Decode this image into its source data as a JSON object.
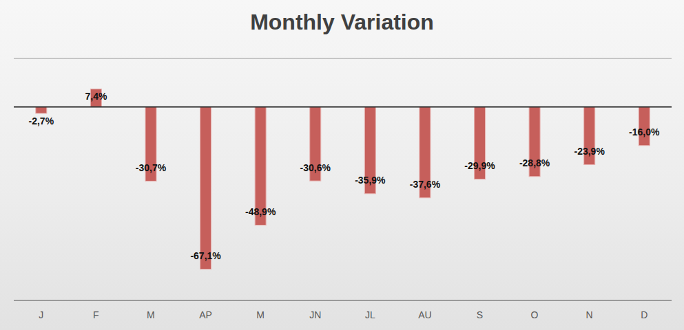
{
  "chart_data": {
    "type": "bar",
    "title": "Monthly Variation",
    "categories": [
      "J",
      "F",
      "M",
      "AP",
      "M",
      "JN",
      "JL",
      "AU",
      "S",
      "O",
      "N",
      "D"
    ],
    "values": [
      -2.7,
      7.4,
      -30.7,
      -67.1,
      -48.9,
      -30.6,
      -35.9,
      -37.6,
      -29.9,
      -28.8,
      -23.9,
      -16.0
    ],
    "value_labels": [
      "-2,7%",
      "7,4%",
      "-30,7%",
      "-67,1%",
      "-48,9%",
      "-30,6%",
      "-35,9%",
      "-37,6%",
      "-29,9%",
      "-28,8%",
      "-23,9%",
      "-16,0%"
    ],
    "color": "#c65f5b",
    "ylim": [
      -80,
      20
    ],
    "yticks": [
      -80,
      -70,
      -60,
      -50,
      -40,
      -30,
      -20,
      -10,
      0,
      10,
      20
    ],
    "grid": true,
    "data_labels": true,
    "tick_labels": "x"
  }
}
